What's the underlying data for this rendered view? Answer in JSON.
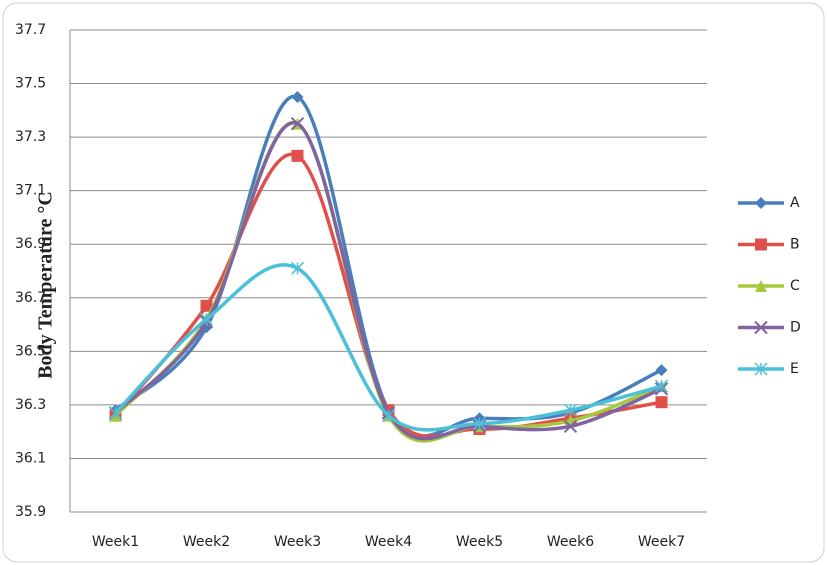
{
  "chart_data": {
    "type": "line",
    "y_label": "Body Temperature °C",
    "categories": [
      "Week1",
      "Week2",
      "Week3",
      "Week4",
      "Week5",
      "Week6",
      "Week7"
    ],
    "series": [
      {
        "name": "A",
        "color": "#4a7ebb",
        "marker": "diamond",
        "values": [
          36.28,
          36.59,
          37.45,
          36.28,
          36.25,
          36.27,
          36.43
        ]
      },
      {
        "name": "B",
        "color": "#e0504a",
        "marker": "square",
        "values": [
          36.26,
          36.67,
          37.23,
          36.28,
          36.21,
          36.25,
          36.31
        ]
      },
      {
        "name": "C",
        "color": "#a8c83c",
        "marker": "triangle",
        "values": [
          36.26,
          36.62,
          37.35,
          36.26,
          36.22,
          36.24,
          36.37
        ]
      },
      {
        "name": "D",
        "color": "#8064a2",
        "marker": "x",
        "values": [
          36.27,
          36.61,
          37.35,
          36.27,
          36.22,
          36.22,
          36.36
        ]
      },
      {
        "name": "E",
        "color": "#4bc0d8",
        "marker": "star",
        "values": [
          36.27,
          36.62,
          36.81,
          36.26,
          36.23,
          36.28,
          36.37
        ]
      }
    ],
    "ylim": [
      35.9,
      37.7
    ],
    "yticks": [
      35.9,
      36.1,
      36.3,
      36.5,
      36.7,
      36.9,
      37.1,
      37.3,
      37.5,
      37.7
    ],
    "grid": true,
    "legend": "right"
  }
}
